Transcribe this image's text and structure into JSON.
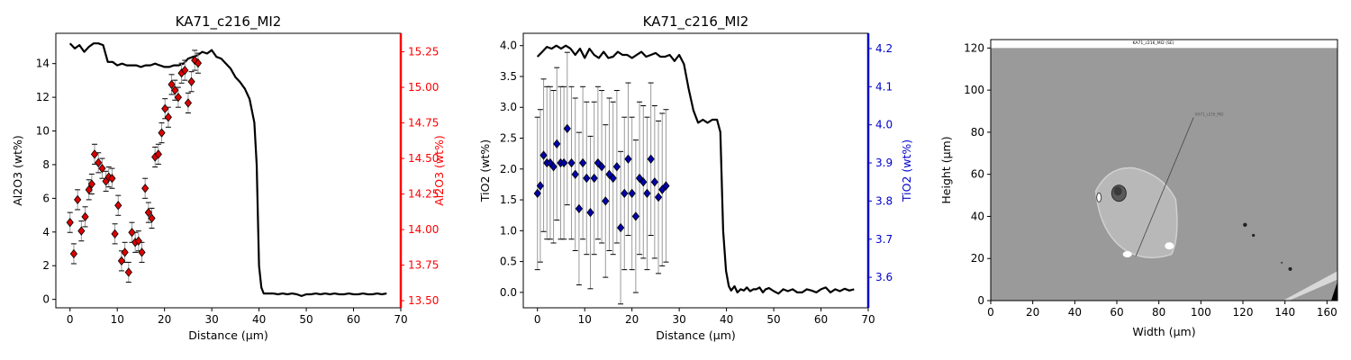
{
  "colors": {
    "al_secondary": "#ff0000",
    "ti_secondary": "#0000cc",
    "profile_line": "#000000",
    "sem_background": "#9a9a9a"
  },
  "chart_data": [
    {
      "type": "line+scatter",
      "title": "KA71_c216_MI2",
      "xlabel": "Distance (µm)",
      "ylabel": "Al2O3 (wt%)",
      "ylabel_right": "Al2O3 (wt%)",
      "xlim": [
        -3,
        70
      ],
      "ylim": [
        -0.5,
        15.8
      ],
      "ylim_right": [
        13.45,
        15.38
      ],
      "xticks": [
        0,
        10,
        20,
        30,
        40,
        50,
        60,
        70
      ],
      "yticks": [
        0,
        2,
        4,
        6,
        8,
        10,
        12,
        14
      ],
      "yticks_right": [
        13.5,
        13.75,
        14.0,
        14.25,
        14.5,
        14.75,
        15.0,
        15.25
      ],
      "ytick_labels_right": [
        "13.50",
        "13.75",
        "14.00",
        "14.25",
        "14.50",
        "14.75",
        "15.00",
        "15.25"
      ],
      "profile": {
        "x": [
          0,
          1,
          2,
          3,
          4,
          5,
          6,
          7,
          8,
          9,
          10,
          11,
          12,
          13,
          14,
          15,
          16,
          17,
          18,
          19,
          20,
          21,
          22,
          23,
          24,
          25,
          26,
          27,
          28,
          29,
          30,
          31,
          32,
          33,
          34,
          35,
          36,
          37,
          38,
          39,
          39.5,
          40,
          40.5,
          41,
          41.5,
          42,
          43,
          44,
          45,
          46,
          47,
          48,
          49,
          50,
          51,
          52,
          53,
          54,
          55,
          56,
          57,
          58,
          59,
          60,
          61,
          62,
          63,
          64,
          65,
          66,
          67
        ],
        "y": [
          15.2,
          14.9,
          15.1,
          14.7,
          15.0,
          15.2,
          15.2,
          15.1,
          14.1,
          14.1,
          13.9,
          14.0,
          13.9,
          13.9,
          13.9,
          13.8,
          13.9,
          13.9,
          14.0,
          13.9,
          13.8,
          13.8,
          13.9,
          13.9,
          14.0,
          14.3,
          14.4,
          14.5,
          14.7,
          14.6,
          14.8,
          14.4,
          14.3,
          14.0,
          13.7,
          13.2,
          12.9,
          12.5,
          11.9,
          10.5,
          8.0,
          2.0,
          0.7,
          0.35,
          0.35,
          0.35,
          0.35,
          0.3,
          0.35,
          0.3,
          0.35,
          0.3,
          0.2,
          0.3,
          0.3,
          0.35,
          0.3,
          0.35,
          0.3,
          0.35,
          0.3,
          0.3,
          0.35,
          0.3,
          0.3,
          0.35,
          0.3,
          0.3,
          0.35,
          0.3,
          0.35
        ]
      },
      "series": [
        {
          "name": "",
          "x": [
            0,
            0.8,
            1.6,
            2.4,
            3.2,
            4,
            4.6,
            5.2,
            6,
            6.8,
            7.6,
            8.2,
            8.9,
            9.5,
            10.2,
            10.9,
            11.6,
            12.4,
            13.1,
            13.8,
            14.5,
            15.2,
            15.9,
            16.6,
            17.3,
            18,
            18.7,
            19.4,
            20.1,
            20.8,
            21.5,
            22.2,
            22.9,
            23.6,
            24.3,
            25,
            25.7,
            26.4,
            27.1
          ],
          "y": [
            14.05,
            13.83,
            14.21,
            13.99,
            14.09,
            14.28,
            14.32,
            14.53,
            14.47,
            14.43,
            14.34,
            14.37,
            14.36,
            13.97,
            14.17,
            13.78,
            13.84,
            13.7,
            13.98,
            13.91,
            13.92,
            13.84,
            14.29,
            14.12,
            14.08,
            14.51,
            14.53,
            14.68,
            14.85,
            14.79,
            15.02,
            14.98,
            14.93,
            15.1,
            15.12,
            14.89,
            15.04,
            15.19,
            15.17
          ],
          "err": [
            0.07,
            0.07,
            0.07,
            0.07,
            0.07,
            0.07,
            0.07,
            0.07,
            0.07,
            0.07,
            0.07,
            0.07,
            0.07,
            0.07,
            0.07,
            0.07,
            0.07,
            0.07,
            0.07,
            0.07,
            0.07,
            0.07,
            0.07,
            0.07,
            0.07,
            0.07,
            0.07,
            0.07,
            0.07,
            0.07,
            0.07,
            0.07,
            0.07,
            0.07,
            0.07,
            0.07,
            0.07,
            0.07,
            0.07
          ],
          "marker": "diamond",
          "color": "#dd0000"
        }
      ]
    },
    {
      "type": "line+scatter",
      "title": "KA71_c216_MI2",
      "xlabel": "Distance (µm)",
      "ylabel": "TiO2 (wt%)",
      "ylabel_right": "TiO2 (wt%)",
      "xlim": [
        -3,
        70
      ],
      "ylim": [
        -0.25,
        4.2
      ],
      "ylim_right": [
        3.52,
        4.24
      ],
      "xticks": [
        0,
        10,
        20,
        30,
        40,
        50,
        60,
        70
      ],
      "yticks": [
        0,
        0.5,
        1,
        1.5,
        2,
        2.5,
        3,
        3.5,
        4
      ],
      "ytick_labels": [
        "0.0",
        "0.5",
        "1.0",
        "1.5",
        "2.0",
        "2.5",
        "3.0",
        "3.5",
        "4.0"
      ],
      "yticks_right": [
        3.6,
        3.7,
        3.8,
        3.9,
        4.0,
        4.1,
        4.2
      ],
      "ytick_labels_right": [
        "3.6",
        "3.7",
        "3.8",
        "3.9",
        "4.0",
        "4.1",
        "4.2"
      ],
      "profile": {
        "x": [
          0,
          1,
          2,
          3,
          4,
          5,
          6,
          7,
          8,
          9,
          10,
          11,
          12,
          13,
          14,
          15,
          16,
          17,
          18,
          19,
          20,
          21,
          22,
          23,
          24,
          25,
          26,
          27,
          28,
          29,
          30,
          31,
          32,
          33,
          34,
          35,
          36,
          37,
          38,
          38.7,
          39.3,
          39.9,
          40.5,
          41,
          41.7,
          42.3,
          43,
          43.7,
          44.3,
          45,
          45.7,
          46.3,
          47,
          47.7,
          48.3,
          49,
          50,
          51,
          52,
          53,
          54,
          55,
          56,
          57,
          58,
          59,
          60,
          61,
          62,
          63,
          64,
          65,
          66,
          67
        ],
        "y": [
          3.82,
          3.9,
          3.98,
          3.95,
          4.0,
          3.95,
          4.0,
          3.95,
          3.85,
          3.95,
          3.8,
          3.95,
          3.85,
          3.8,
          3.9,
          3.8,
          3.82,
          3.9,
          3.85,
          3.85,
          3.8,
          3.85,
          3.9,
          3.82,
          3.85,
          3.88,
          3.82,
          3.82,
          3.85,
          3.75,
          3.85,
          3.7,
          3.3,
          2.95,
          2.75,
          2.8,
          2.75,
          2.8,
          2.8,
          2.6,
          1.0,
          0.35,
          0.1,
          0.03,
          0.1,
          0.0,
          0.05,
          0.03,
          0.08,
          0.02,
          0.05,
          0.05,
          0.08,
          0.0,
          0.05,
          0.07,
          0.02,
          -0.02,
          0.05,
          0.02,
          0.05,
          0.0,
          0.0,
          0.05,
          0.03,
          0.0,
          0.05,
          0.08,
          0.0,
          0.05,
          0.02,
          0.06,
          0.03,
          0.05
        ]
      },
      "series": [
        {
          "name": "",
          "x": [
            0,
            0.6,
            1.3,
            2,
            2.7,
            3.4,
            4.1,
            4.9,
            5.6,
            6.3,
            7.2,
            8,
            8.8,
            9.6,
            10.4,
            11.2,
            12,
            12.8,
            13.6,
            14.4,
            15.2,
            16,
            16.8,
            17.6,
            18.4,
            19.2,
            20,
            20.8,
            21.6,
            22.4,
            23.2,
            24,
            24.8,
            25.6,
            26.4,
            27.2
          ],
          "y": [
            3.82,
            3.84,
            3.92,
            3.9,
            3.9,
            3.89,
            3.95,
            3.9,
            3.9,
            3.99,
            3.9,
            3.87,
            3.78,
            3.9,
            3.86,
            3.77,
            3.86,
            3.9,
            3.89,
            3.8,
            3.87,
            3.86,
            3.89,
            3.73,
            3.82,
            3.91,
            3.82,
            3.76,
            3.86,
            3.85,
            3.82,
            3.91,
            3.85,
            3.81,
            3.83,
            3.84
          ],
          "err": [
            0.2,
            0.2,
            0.2,
            0.2,
            0.2,
            0.2,
            0.2,
            0.2,
            0.2,
            0.2,
            0.2,
            0.2,
            0.2,
            0.2,
            0.2,
            0.2,
            0.2,
            0.2,
            0.2,
            0.2,
            0.2,
            0.2,
            0.2,
            0.2,
            0.2,
            0.2,
            0.2,
            0.2,
            0.2,
            0.2,
            0.2,
            0.2,
            0.2,
            0.2,
            0.2,
            0.2
          ],
          "marker": "diamond",
          "color": "#0000aa"
        }
      ]
    },
    {
      "type": "image",
      "title": "",
      "xlabel": "Width (µm)",
      "ylabel": "Height (µm)",
      "xlim": [
        0,
        165
      ],
      "ylim": [
        0,
        124
      ],
      "xticks": [
        0,
        20,
        40,
        60,
        80,
        100,
        120,
        140,
        160
      ],
      "yticks": [
        0,
        20,
        40,
        60,
        80,
        100,
        120
      ],
      "image_caption": "KA71_c216_MI2 (SE)",
      "profile_label": "KA71_c216_MI2"
    }
  ]
}
